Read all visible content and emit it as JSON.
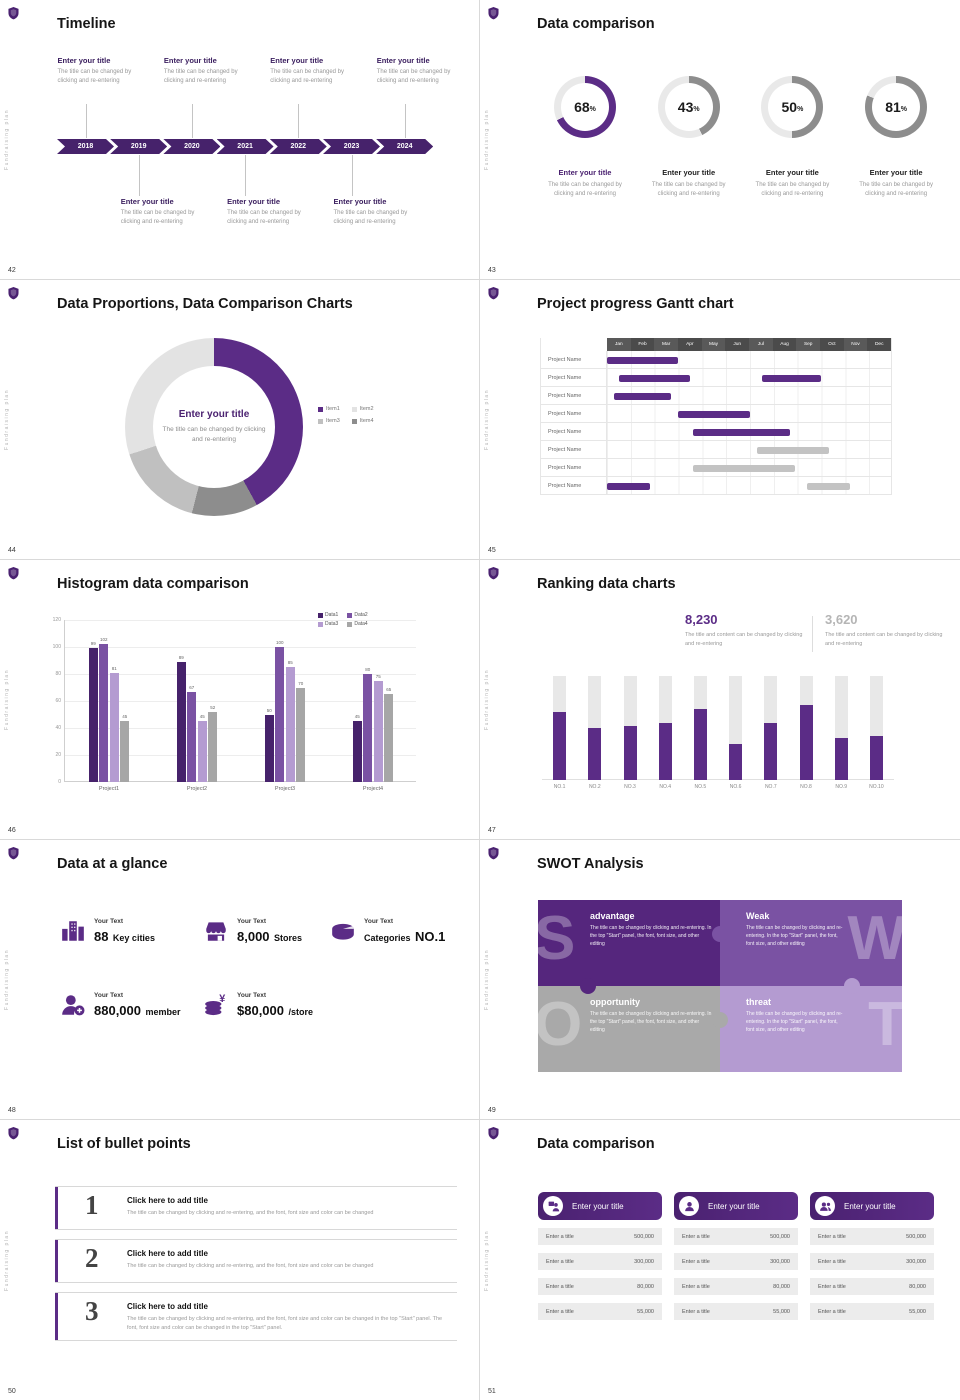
{
  "colors": {
    "purple": "#5b2c86",
    "purple_dark": "#46226b",
    "purple_mid": "#7a52a3",
    "purple_light": "#b49bd1",
    "gray": "#8d8d8d",
    "gray_light": "#e9e9e9"
  },
  "common": {
    "vertical_text": "Fundraising plan"
  },
  "slides": {
    "timeline": {
      "page": "42",
      "title": "Timeline",
      "years": [
        "2018",
        "2019",
        "2020",
        "2021",
        "2022",
        "2023",
        "2024"
      ],
      "top_items": [
        {
          "title": "Enter your title",
          "desc": "The title can be changed by clicking and re-entering"
        },
        {
          "title": "Enter your title",
          "desc": "The title can be changed by clicking and re-entering"
        },
        {
          "title": "Enter your title",
          "desc": "The title can be changed by clicking and re-entering"
        },
        {
          "title": "Enter your title",
          "desc": "The title can be changed by clicking and re-entering"
        }
      ],
      "bottom_items": [
        {
          "title": "Enter your title",
          "desc": "The title can be changed by clicking and re-entering"
        },
        {
          "title": "Enter your title",
          "desc": "The title can be changed by clicking and re-entering"
        },
        {
          "title": "Enter your title",
          "desc": "The title can be changed by clicking and re-entering"
        }
      ]
    },
    "rings": {
      "page": "43",
      "title": "Data comparison",
      "items": [
        {
          "title": "Enter your title",
          "desc": "The title can be changed by clicking and re-entering"
        },
        {
          "title": "Enter your title",
          "desc": "The title can be changed by clicking and re-entering"
        },
        {
          "title": "Enter your title",
          "desc": "The title can be changed by clicking and re-entering"
        },
        {
          "title": "Enter your title",
          "desc": "The title can be changed by clicking and re-entering"
        }
      ]
    },
    "proportions": {
      "page": "44",
      "title": "Data Proportions, Data Comparison Charts",
      "center_title": "Enter your title",
      "center_desc": "The title can be changed by clicking and re-entering"
    },
    "gantt": {
      "page": "45",
      "title": "Project progress Gantt chart"
    },
    "histogram": {
      "page": "46",
      "title": "Histogram data comparison"
    },
    "ranking": {
      "page": "47",
      "title": "Ranking data charts",
      "stats": [
        {
          "value": "8,230",
          "desc": "The title and content can be changed by clicking and re-entering"
        },
        {
          "value": "3,620",
          "desc": "The title and content can be changed by clicking and re-entering"
        }
      ]
    },
    "glance": {
      "page": "48",
      "title": "Data at a glance",
      "items": [
        {
          "label": "Your Text",
          "strong": "88",
          "rest": "Key cities",
          "icon": "city-icon"
        },
        {
          "label": "Your Text",
          "strong": "8,000",
          "rest": "Stores",
          "icon": "store-icon"
        },
        {
          "label": "Your Text",
          "strong": "NO.1",
          "rest": "Categories",
          "icon": "categories-icon"
        },
        {
          "label": "Your Text",
          "strong": "880,000",
          "rest": "member",
          "icon": "member-icon"
        },
        {
          "label": "Your Text",
          "strong": "$80,000",
          "rest": "/store",
          "icon": "money-icon"
        }
      ]
    },
    "swot": {
      "page": "49",
      "title": "SWOT Analysis",
      "quadrants": [
        {
          "letter": "S",
          "heading": "advantage",
          "desc": "The title can be changed by clicking and re-entering. In the top \"Start\" panel, the font, font size, and other editing",
          "color": "#55267d"
        },
        {
          "letter": "W",
          "heading": "Weak",
          "desc": "The title can be changed by clicking and re-entering. In the top \"Start\" panel, the font, font size, and other editing",
          "color": "#7a52a3"
        },
        {
          "letter": "O",
          "heading": "opportunity",
          "desc": "The title can be changed by clicking and re-entering. In the top \"Start\" panel, the font, font size, and other editing",
          "color": "#a9a9a9"
        },
        {
          "letter": "T",
          "heading": "threat",
          "desc": "The title can be changed by clicking and re-entering. In the top \"Start\" panel, the font, font size, and other editing",
          "color": "#b49bd1"
        }
      ]
    },
    "bullets": {
      "page": "50",
      "title": "List of bullet points",
      "items": [
        {
          "num": "1",
          "heading": "Click here to add title",
          "desc": "The title can be changed by clicking and re-entering, and the font, font size and color can be changed"
        },
        {
          "num": "2",
          "heading": "Click here to add title",
          "desc": "The title can be changed by clicking and re-entering, and the font, font size and color can be changed"
        },
        {
          "num": "3",
          "heading": "Click here to add title",
          "desc": "The title can be changed by clicking and re-entering, and the font, font size and color can be changed in the top \"Start\" panel. The font, font size and color can be changed in the top \"Start\" panel."
        }
      ]
    },
    "cards": {
      "page": "51",
      "title": "Data comparison",
      "header": "Enter your title",
      "rows": [
        {
          "label": "Enter a title",
          "value": "500,000"
        },
        {
          "label": "Enter a title",
          "value": "300,000"
        },
        {
          "label": "Enter a title",
          "value": "80,000"
        },
        {
          "label": "Enter a title",
          "value": "55,000"
        }
      ]
    }
  },
  "chart_data": [
    {
      "type": "pie",
      "variant": "progress-rings",
      "title": "Data comparison",
      "values": [
        68,
        43,
        50,
        81
      ],
      "unit": "%"
    },
    {
      "type": "pie",
      "variant": "donut",
      "title": "Data Proportions, Data Comparison Charts",
      "legend": [
        {
          "label": "Item1",
          "color": "#5b2c86"
        },
        {
          "label": "Item2",
          "color": "#e3e3e3"
        },
        {
          "label": "Item3",
          "color": "#c0c0c0"
        },
        {
          "label": "Item4",
          "color": "#8d8d8d"
        }
      ],
      "segments": [
        {
          "label": "Item1",
          "value": 42,
          "color": "#5b2c86"
        },
        {
          "label": "Item4",
          "value": 12,
          "color": "#8d8d8d"
        },
        {
          "label": "Item3",
          "value": 16,
          "color": "#c0c0c0"
        },
        {
          "label": "Item2",
          "value": 30,
          "color": "#e3e3e3"
        }
      ]
    },
    {
      "type": "table",
      "variant": "gantt",
      "title": "Project progress Gantt chart",
      "months": [
        "Jan",
        "Feb",
        "Mar",
        "Apr",
        "May",
        "Jun",
        "Jul",
        "Aug",
        "Sep",
        "Oct",
        "Nov",
        "Dec"
      ],
      "rows": [
        {
          "label": "Project Name",
          "bars": [
            {
              "s": 0,
              "e": 3,
              "c": "p"
            }
          ]
        },
        {
          "label": "Project Name",
          "bars": [
            {
              "s": 0.5,
              "e": 3.5,
              "c": "p"
            },
            {
              "s": 6.5,
              "e": 9,
              "c": "p"
            }
          ]
        },
        {
          "label": "Project Name",
          "bars": [
            {
              "s": 0.3,
              "e": 2.7,
              "c": "p"
            }
          ]
        },
        {
          "label": "Project Name",
          "bars": [
            {
              "s": 3,
              "e": 6,
              "c": "p"
            }
          ]
        },
        {
          "label": "Project Name",
          "bars": [
            {
              "s": 3.6,
              "e": 7.7,
              "c": "p"
            }
          ]
        },
        {
          "label": "Project Name",
          "bars": [
            {
              "s": 6.3,
              "e": 9.3,
              "c": "g"
            }
          ]
        },
        {
          "label": "Project Name",
          "bars": [
            {
              "s": 3.6,
              "e": 7.9,
              "c": "g"
            }
          ]
        },
        {
          "label": "Project Name",
          "bars": [
            {
              "s": 0,
              "e": 1.8,
              "c": "p"
            },
            {
              "s": 8.4,
              "e": 10.2,
              "c": "g"
            }
          ]
        }
      ]
    },
    {
      "type": "bar",
      "variant": "grouped",
      "title": "Histogram data comparison",
      "categories": [
        "Project1",
        "Project2",
        "Project3",
        "Project4"
      ],
      "series": [
        {
          "name": "Data1",
          "color": "#46226b",
          "values": [
            99,
            89,
            50,
            45
          ]
        },
        {
          "name": "Data2",
          "color": "#7a52a3",
          "values": [
            102,
            67,
            100,
            80
          ]
        },
        {
          "name": "Data3",
          "color": "#b49bd1",
          "values": [
            81,
            45,
            85,
            75
          ]
        },
        {
          "name": "Data4",
          "color": "#a6a6a6",
          "values": [
            45,
            52,
            70,
            65
          ]
        }
      ],
      "ylim": [
        0,
        120
      ],
      "yticks": [
        0,
        20,
        40,
        60,
        80,
        100,
        120
      ]
    },
    {
      "type": "bar",
      "variant": "ranking",
      "title": "Ranking data charts",
      "categories": [
        "NO.1",
        "NO.2",
        "NO.3",
        "NO.4",
        "NO.5",
        "NO.6",
        "NO.7",
        "NO.8",
        "NO.9",
        "NO.10"
      ],
      "values": [
        65,
        50,
        52,
        55,
        68,
        35,
        55,
        72,
        40,
        42
      ],
      "ylim": [
        0,
        100
      ]
    }
  ]
}
